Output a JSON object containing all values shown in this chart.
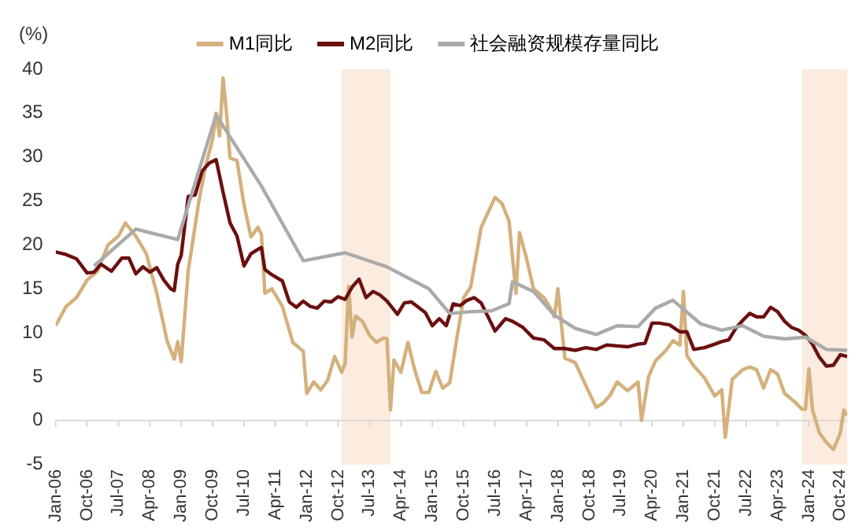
{
  "chart_data": {
    "type": "line",
    "ylabel": "(%)",
    "legend": "top",
    "grid": false,
    "marker": "none",
    "line_style": "solid",
    "xlim": [
      "2006-01",
      "2024-12"
    ],
    "ylim": [
      -5,
      40
    ],
    "yticks": [
      -5,
      0,
      5,
      10,
      15,
      20,
      25,
      30,
      35,
      40
    ],
    "xticks": [
      {
        "value": "2006-01",
        "label": "Jan-06"
      },
      {
        "value": "2006-10",
        "label": "Oct-06"
      },
      {
        "value": "2007-07",
        "label": "Jul-07"
      },
      {
        "value": "2008-04",
        "label": "Apr-08"
      },
      {
        "value": "2009-01",
        "label": "Jan-09"
      },
      {
        "value": "2009-10",
        "label": "Oct-09"
      },
      {
        "value": "2010-07",
        "label": "Jul-10"
      },
      {
        "value": "2011-04",
        "label": "Apr-11"
      },
      {
        "value": "2012-01",
        "label": "Jan-12"
      },
      {
        "value": "2012-10",
        "label": "Oct-12"
      },
      {
        "value": "2013-07",
        "label": "Jul-13"
      },
      {
        "value": "2014-04",
        "label": "Apr-14"
      },
      {
        "value": "2015-01",
        "label": "Jan-15"
      },
      {
        "value": "2015-10",
        "label": "Oct-15"
      },
      {
        "value": "2016-07",
        "label": "Jul-16"
      },
      {
        "value": "2017-04",
        "label": "Apr-17"
      },
      {
        "value": "2018-01",
        "label": "Jan-18"
      },
      {
        "value": "2018-10",
        "label": "Oct-18"
      },
      {
        "value": "2019-07",
        "label": "Jul-19"
      },
      {
        "value": "2020-04",
        "label": "Apr-20"
      },
      {
        "value": "2021-01",
        "label": "Jan-21"
      },
      {
        "value": "2021-10",
        "label": "Oct-21"
      },
      {
        "value": "2022-07",
        "label": "Jul-22"
      },
      {
        "value": "2023-04",
        "label": "Apr-23"
      },
      {
        "value": "2024-01",
        "label": "Jan-24"
      },
      {
        "value": "2024-10",
        "label": "Oct-24"
      }
    ],
    "ref_lines": [
      {
        "axis": "y",
        "value": 0,
        "color": "#d9d9d9"
      }
    ],
    "bands": [
      {
        "axis": "x",
        "from": "2012-11",
        "to": "2014-01",
        "color": "#fcebdf"
      },
      {
        "axis": "x",
        "from": "2023-11",
        "to": "2024-12",
        "color": "#fcebdf"
      }
    ],
    "series": [
      {
        "name": "M1同比",
        "color": "#d4b07c",
        "x": [
          "2006-01",
          "2006-04",
          "2006-07",
          "2006-10",
          "2007-01",
          "2007-04",
          "2007-07",
          "2007-09",
          "2007-12",
          "2008-03",
          "2008-06",
          "2008-09",
          "2008-11",
          "2008-12",
          "2009-01",
          "2009-03",
          "2009-06",
          "2009-08",
          "2009-10",
          "2009-11",
          "2009-12",
          "2010-01",
          "2010-02",
          "2010-03",
          "2010-05",
          "2010-07",
          "2010-09",
          "2010-11",
          "2010-12",
          "2011-01",
          "2011-03",
          "2011-06",
          "2011-09",
          "2011-12",
          "2012-01",
          "2012-03",
          "2012-05",
          "2012-07",
          "2012-09",
          "2012-11",
          "2012-12",
          "2013-01",
          "2013-02",
          "2013-03",
          "2013-05",
          "2013-07",
          "2013-09",
          "2013-11",
          "2013-12",
          "2014-01",
          "2014-02",
          "2014-04",
          "2014-06",
          "2014-08",
          "2014-10",
          "2014-12",
          "2015-02",
          "2015-04",
          "2015-06",
          "2015-08",
          "2015-10",
          "2015-12",
          "2016-03",
          "2016-05",
          "2016-07",
          "2016-09",
          "2016-11",
          "2017-01",
          "2017-02",
          "2017-04",
          "2017-06",
          "2017-09",
          "2017-11",
          "2017-12",
          "2018-01",
          "2018-03",
          "2018-06",
          "2018-09",
          "2018-12",
          "2019-02",
          "2019-04",
          "2019-06",
          "2019-09",
          "2019-12",
          "2020-01",
          "2020-03",
          "2020-05",
          "2020-08",
          "2020-10",
          "2020-12",
          "2021-01",
          "2021-02",
          "2021-04",
          "2021-07",
          "2021-10",
          "2021-12",
          "2022-01",
          "2022-03",
          "2022-06",
          "2022-08",
          "2022-10",
          "2022-12",
          "2023-02",
          "2023-04",
          "2023-06",
          "2023-09",
          "2023-11",
          "2023-12",
          "2024-01",
          "2024-02",
          "2024-04",
          "2024-06",
          "2024-08",
          "2024-10",
          "2024-11",
          "2024-12"
        ],
        "values": [
          10.8,
          13,
          14,
          16,
          17,
          20,
          21,
          22.5,
          21,
          19,
          14.5,
          9,
          7,
          9,
          6.7,
          17,
          24.8,
          29,
          32,
          35,
          32.4,
          39,
          35,
          29.9,
          29.6,
          24.6,
          20.9,
          22,
          21.2,
          14.5,
          15,
          13,
          8.9,
          7.9,
          3.1,
          4.4,
          3.5,
          4.6,
          7.3,
          5.5,
          6.5,
          15.3,
          9.5,
          11.9,
          11.3,
          9.7,
          8.9,
          9.4,
          9.3,
          1.2,
          6.9,
          5.5,
          8.9,
          5.7,
          3.2,
          3.2,
          5.6,
          3.7,
          4.3,
          9.3,
          14,
          15.2,
          22,
          23.7,
          25.4,
          24.7,
          22.7,
          14.5,
          21.4,
          18.5,
          15,
          14,
          12.7,
          11.8,
          15,
          7.1,
          6.6,
          4,
          1.5,
          2,
          2.9,
          4.4,
          3.4,
          4.4,
          0,
          5,
          6.8,
          8,
          9.1,
          8.6,
          14.7,
          7.4,
          6.2,
          4.9,
          2.8,
          3.5,
          -1.9,
          4.7,
          5.8,
          6.1,
          5.8,
          3.7,
          5.8,
          5.3,
          3.1,
          2.1,
          1.3,
          1.3,
          5.9,
          1.2,
          -1.4,
          -2.5,
          -3.3,
          -1.4,
          1.2,
          0.6
        ]
      },
      {
        "name": "M2同比",
        "color": "#6b0f0f",
        "x": [
          "2006-01",
          "2006-04",
          "2006-07",
          "2006-10",
          "2006-12",
          "2007-02",
          "2007-05",
          "2007-08",
          "2007-10",
          "2007-12",
          "2008-02",
          "2008-04",
          "2008-06",
          "2008-08",
          "2008-10",
          "2008-11",
          "2008-12",
          "2009-01",
          "2009-03",
          "2009-05",
          "2009-07",
          "2009-09",
          "2009-11",
          "2010-01",
          "2010-03",
          "2010-05",
          "2010-07",
          "2010-09",
          "2010-11",
          "2010-12",
          "2011-01",
          "2011-03",
          "2011-06",
          "2011-08",
          "2011-10",
          "2011-12",
          "2012-02",
          "2012-04",
          "2012-06",
          "2012-08",
          "2012-10",
          "2012-12",
          "2013-02",
          "2013-04",
          "2013-06",
          "2013-08",
          "2013-10",
          "2013-12",
          "2014-03",
          "2014-05",
          "2014-07",
          "2014-09",
          "2014-11",
          "2015-01",
          "2015-03",
          "2015-05",
          "2015-07",
          "2015-09",
          "2015-11",
          "2016-01",
          "2016-03",
          "2016-05",
          "2016-07",
          "2016-10",
          "2016-12",
          "2017-03",
          "2017-06",
          "2017-09",
          "2017-12",
          "2018-03",
          "2018-06",
          "2018-09",
          "2018-12",
          "2019-03",
          "2019-06",
          "2019-09",
          "2019-12",
          "2020-02",
          "2020-04",
          "2020-06",
          "2020-09",
          "2020-12",
          "2021-02",
          "2021-04",
          "2021-07",
          "2021-10",
          "2021-12",
          "2022-02",
          "2022-04",
          "2022-06",
          "2022-08",
          "2022-10",
          "2022-12",
          "2023-02",
          "2023-04",
          "2023-06",
          "2023-08",
          "2023-10",
          "2023-12",
          "2024-02",
          "2024-04",
          "2024-06",
          "2024-08",
          "2024-10",
          "2024-12"
        ],
        "values": [
          19.2,
          18.9,
          18.4,
          16.8,
          16.9,
          17.8,
          17,
          18.5,
          18.5,
          16.7,
          17.5,
          16.9,
          17.4,
          16,
          15,
          14.8,
          17.8,
          18.8,
          25.5,
          25.7,
          28.4,
          29.3,
          29.7,
          26,
          22.5,
          21,
          17.6,
          19,
          19.5,
          19.7,
          17.2,
          16.6,
          15.9,
          13.5,
          12.9,
          13.6,
          13,
          12.8,
          13.6,
          13.5,
          14.1,
          13.8,
          15.2,
          16.1,
          14,
          14.7,
          14.3,
          13.6,
          12.1,
          13.4,
          13.5,
          12.9,
          12.3,
          10.8,
          11.6,
          10.8,
          13.3,
          13.1,
          13.7,
          14,
          13.4,
          11.8,
          10.2,
          11.6,
          11.3,
          10.6,
          9.4,
          9.2,
          8.2,
          8.2,
          8,
          8.3,
          8.1,
          8.6,
          8.5,
          8.4,
          8.7,
          8.8,
          11.1,
          11.1,
          10.9,
          10.1,
          10.1,
          8.1,
          8.3,
          8.7,
          9,
          9.2,
          10.5,
          11.4,
          12.2,
          11.8,
          11.8,
          12.9,
          12.4,
          11.3,
          10.6,
          10.3,
          9.7,
          8.7,
          7.2,
          6.2,
          6.3,
          7.5,
          7.3
        ]
      },
      {
        "name": "社会融资规模存量同比",
        "color": "#aaaaaa",
        "x": [
          "2006-12",
          "2007-12",
          "2008-12",
          "2009-11",
          "2010-12",
          "2011-12",
          "2012-12",
          "2013-12",
          "2014-12",
          "2015-06",
          "2015-12",
          "2016-06",
          "2016-11",
          "2016-12",
          "2017-06",
          "2017-12",
          "2018-06",
          "2018-12",
          "2019-06",
          "2019-12",
          "2020-05",
          "2020-10",
          "2021-06",
          "2021-12",
          "2022-06",
          "2022-12",
          "2023-06",
          "2023-12",
          "2024-06",
          "2024-12"
        ],
        "values": [
          17.6,
          21.8,
          20.6,
          34.8,
          26.7,
          18.2,
          19.1,
          17.5,
          15,
          12.2,
          12.4,
          12.5,
          13.3,
          15.8,
          14.7,
          12,
          10.5,
          9.8,
          10.8,
          10.7,
          12.8,
          13.7,
          11,
          10.3,
          10.8,
          9.6,
          9.3,
          9.5,
          8.1,
          8
        ]
      }
    ]
  }
}
